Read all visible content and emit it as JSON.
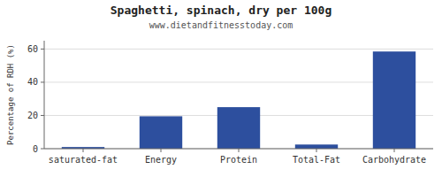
{
  "chart_data": {
    "type": "bar",
    "title": "Spaghetti, spinach, dry per 100g",
    "subtitle": "www.dietandfitnesstoday.com",
    "categories": [
      "saturated-fat",
      "Energy",
      "Protein",
      "Total-Fat",
      "Carbohydrate"
    ],
    "values": [
      1.0,
      19.5,
      25.0,
      2.5,
      58.5
    ],
    "color": "#2d4f9e",
    "ylabel": "Percentage of RDH (%)",
    "ylim": [
      0,
      65
    ],
    "yticks": [
      0,
      20,
      40,
      60
    ],
    "grid": true
  }
}
